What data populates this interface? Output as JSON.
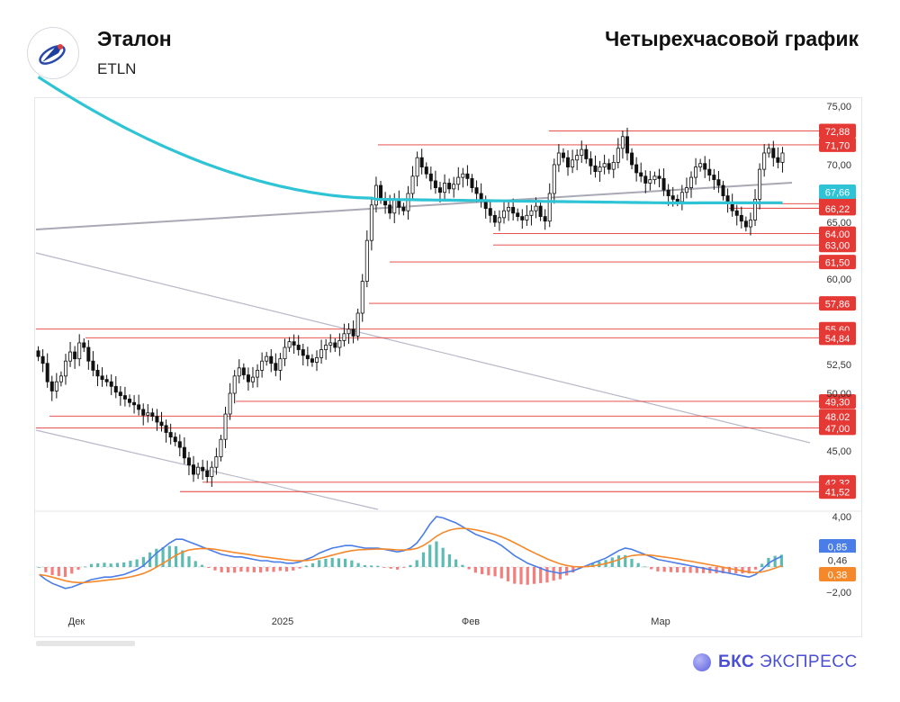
{
  "header": {
    "company": "Эталон",
    "ticker": "ETLN",
    "timeframe_title": "Четырехчасовой график"
  },
  "brand": {
    "name_bold": "БКС",
    "name_rest": " ЭКСПРЕСС"
  },
  "logo_icon": "etalon-logo-icon",
  "colors": {
    "ma": "#2ec4d6",
    "level_line": "#e53935",
    "label_red": "#e53935",
    "label_ma": "#2ec4d6",
    "trend": "#b8b8c8",
    "macd": "#4a7de8",
    "signal": "#f5882b",
    "hist_pos": "#26a69a",
    "hist_neg": "#ef5350"
  },
  "chart_data": {
    "type": "candlestick",
    "x_tick_labels": [
      "Дек",
      "2025",
      "Фев",
      "Мар"
    ],
    "y_tick_labels": [
      "75,00",
      "70,00",
      "65,00",
      "60,00",
      "52,50",
      "50,00",
      "45,00"
    ],
    "y_range": [
      40,
      76
    ],
    "price_levels": [
      {
        "label": "72,88",
        "value": 72.88
      },
      {
        "label": "71,70",
        "value": 71.7
      },
      {
        "label": "66,62",
        "value": 66.62
      },
      {
        "label": "66,22",
        "value": 66.22
      },
      {
        "label": "64,00",
        "value": 64.0
      },
      {
        "label": "63,00",
        "value": 63.0
      },
      {
        "label": "61,50",
        "value": 61.5
      },
      {
        "label": "57,86",
        "value": 57.86
      },
      {
        "label": "55,60",
        "value": 55.6
      },
      {
        "label": "54,84",
        "value": 54.84
      },
      {
        "label": "49,30",
        "value": 49.3
      },
      {
        "label": "48,02",
        "value": 48.02
      },
      {
        "label": "47,00",
        "value": 47.0
      },
      {
        "label": "42,32",
        "value": 42.32
      },
      {
        "label": "41,52",
        "value": 41.52
      }
    ],
    "ma_label": {
      "label": "67,66",
      "value": 67.66
    },
    "closes": [
      53.2,
      52.6,
      51.0,
      50.2,
      51.0,
      51.5,
      52.8,
      53.6,
      53.0,
      54.4,
      54.0,
      52.8,
      52.0,
      51.5,
      51.2,
      51.0,
      50.6,
      50.1,
      49.8,
      49.5,
      49.2,
      49.0,
      48.6,
      48.1,
      48.3,
      48.0,
      47.5,
      47.2,
      46.6,
      46.2,
      45.8,
      45.3,
      44.4,
      43.8,
      43.0,
      43.6,
      43.3,
      42.8,
      43.6,
      44.5,
      46.0,
      48.2,
      50.0,
      51.5,
      52.2,
      51.6,
      51.0,
      51.4,
      52.0,
      52.8,
      53.2,
      52.6,
      52.0,
      53.0,
      54.0,
      54.5,
      54.2,
      53.8,
      53.3,
      53.0,
      52.7,
      53.1,
      53.8,
      54.2,
      54.4,
      54.0,
      54.6,
      55.2,
      55.6,
      55.0,
      57.0,
      59.8,
      63.4,
      66.5,
      68.2,
      67.0,
      66.5,
      65.8,
      67.0,
      66.3,
      66.0,
      67.5,
      69.0,
      70.6,
      69.8,
      69.2,
      68.6,
      68.0,
      67.6,
      68.4,
      67.9,
      68.3,
      68.9,
      69.2,
      68.8,
      68.0,
      67.5,
      66.8,
      66.2,
      65.6,
      65.0,
      65.4,
      66.0,
      66.3,
      65.8,
      65.5,
      65.2,
      65.6,
      66.0,
      66.4,
      65.5,
      65.1,
      67.5,
      70.0,
      71.0,
      70.6,
      69.8,
      70.4,
      70.8,
      71.3,
      70.5,
      69.9,
      69.4,
      69.8,
      70.1,
      69.6,
      70.2,
      71.4,
      72.4,
      71.0,
      70.0,
      69.3,
      69.0,
      68.4,
      68.7,
      69.0,
      68.8,
      67.8,
      67.3,
      67.0,
      66.8,
      67.6,
      68.0,
      68.9,
      69.8,
      70.1,
      69.6,
      69.1,
      68.7,
      68.2,
      67.3,
      66.6,
      66.0,
      65.6,
      65.1,
      64.6,
      65.2,
      67.0,
      69.6,
      71.0,
      71.4,
      70.6,
      70.2,
      71.0
    ],
    "macd_ticks": [
      "4,00",
      "−2,00"
    ],
    "macd_labels": [
      {
        "label": "0,85",
        "value": 0.85
      },
      {
        "label": "0,46",
        "value": 0.46
      },
      {
        "label": "0,38",
        "value": 0.38
      }
    ],
    "macd": [
      -0.6,
      -1.0,
      -1.3,
      -1.5,
      -1.7,
      -1.6,
      -1.4,
      -1.2,
      -1.0,
      -0.9,
      -0.8,
      -0.8,
      -0.7,
      -0.6,
      -0.4,
      -0.2,
      0.1,
      0.6,
      1.1,
      1.5,
      1.9,
      2.2,
      2.2,
      2.0,
      1.8,
      1.6,
      1.4,
      1.2,
      1.0,
      0.9,
      0.8,
      0.8,
      0.7,
      0.6,
      0.5,
      0.5,
      0.4,
      0.4,
      0.3,
      0.3,
      0.4,
      0.6,
      0.8,
      1.1,
      1.3,
      1.5,
      1.6,
      1.7,
      1.7,
      1.6,
      1.5,
      1.5,
      1.5,
      1.4,
      1.3,
      1.2,
      1.3,
      1.5,
      1.9,
      2.6,
      3.4,
      4.0,
      3.9,
      3.7,
      3.5,
      3.2,
      2.9,
      2.6,
      2.4,
      2.2,
      2.0,
      1.7,
      1.3,
      0.9,
      0.6,
      0.3,
      0.1,
      -0.1,
      -0.3,
      -0.4,
      -0.5,
      -0.4,
      -0.3,
      -0.1,
      0.1,
      0.3,
      0.5,
      0.7,
      1.0,
      1.3,
      1.5,
      1.4,
      1.2,
      1.0,
      0.8,
      0.6,
      0.5,
      0.4,
      0.3,
      0.2,
      0.1,
      0.0,
      -0.1,
      -0.2,
      -0.3,
      -0.4,
      -0.5,
      -0.6,
      -0.7,
      -0.8,
      -0.6,
      -0.2,
      0.3,
      0.6,
      0.85
    ]
  }
}
